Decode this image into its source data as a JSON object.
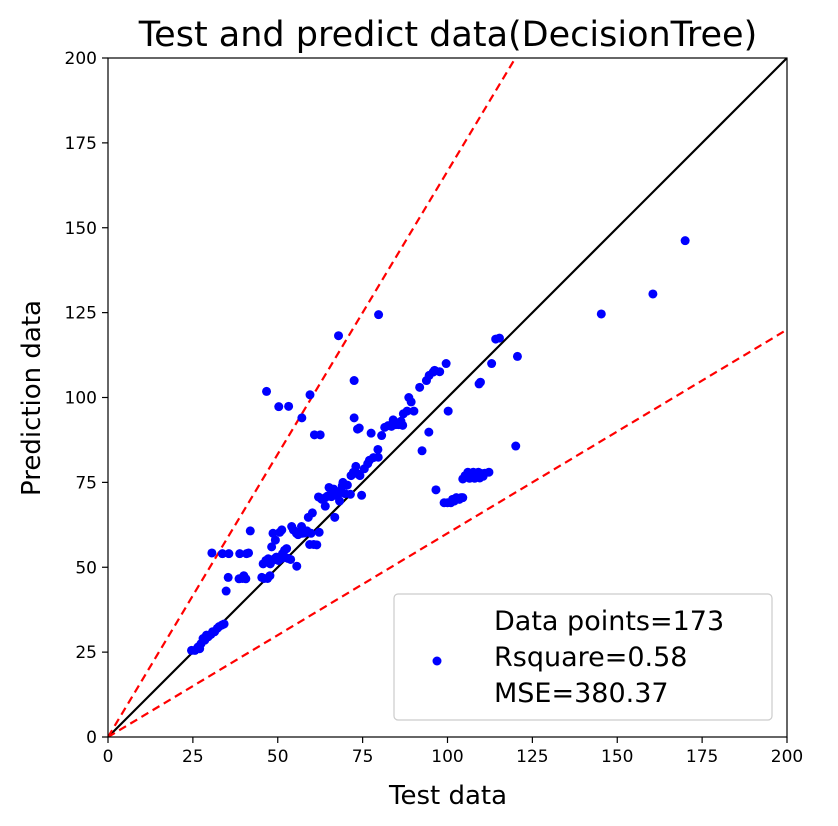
{
  "chart_data": {
    "type": "scatter",
    "title": "Test and predict data(DecisionTree)",
    "xlabel": "Test data",
    "ylabel": "Prediction data",
    "xlim": [
      0,
      200
    ],
    "ylim": [
      0,
      200
    ],
    "xticks": [
      0,
      25,
      50,
      75,
      100,
      125,
      150,
      175,
      200
    ],
    "yticks": [
      0,
      25,
      50,
      75,
      100,
      125,
      150,
      175,
      200
    ],
    "grid": false,
    "legend_position": "lower-right",
    "legend": {
      "lines": [
        "Data points=173",
        "Rsquare=0.58",
        "MSE=380.37"
      ]
    },
    "colors": {
      "points": "#0000ff",
      "identity_line": "#000000",
      "bound_lines": "#ff0000"
    },
    "reference_lines": [
      {
        "name": "identity",
        "style": "solid",
        "color": "#000000",
        "points": [
          [
            0,
            0
          ],
          [
            200,
            200
          ]
        ]
      },
      {
        "name": "upper-bound",
        "style": "dashed",
        "color": "#ff0000",
        "points": [
          [
            0,
            0
          ],
          [
            120,
            200
          ]
        ]
      },
      {
        "name": "lower-bound",
        "style": "dashed",
        "color": "#ff0000",
        "points": [
          [
            0,
            0
          ],
          [
            200,
            120
          ]
        ]
      }
    ],
    "series": [
      {
        "points": [
          [
            24.6,
            25.5
          ],
          [
            25.6,
            25.5
          ],
          [
            26.5,
            26.5
          ],
          [
            27.0,
            26.0
          ],
          [
            27.4,
            27.5
          ],
          [
            28.0,
            29.0
          ],
          [
            28.5,
            28.5
          ],
          [
            29.0,
            30.0
          ],
          [
            29.5,
            29.5
          ],
          [
            30.3,
            30.2
          ],
          [
            30.8,
            31.0
          ],
          [
            31.4,
            31.0
          ],
          [
            32.2,
            32.0
          ],
          [
            32.7,
            32.5
          ],
          [
            33.6,
            33.0
          ],
          [
            34.2,
            33.3
          ],
          [
            30.6,
            54.2
          ],
          [
            33.7,
            54.0
          ],
          [
            35.6,
            54.0
          ],
          [
            34.8,
            43.0
          ],
          [
            35.4,
            47.0
          ],
          [
            38.6,
            46.6
          ],
          [
            39.6,
            46.7
          ],
          [
            40.6,
            46.6
          ],
          [
            38.8,
            54.0
          ],
          [
            40.8,
            54.0
          ],
          [
            41.4,
            54.2
          ],
          [
            41.9,
            60.7
          ],
          [
            45.3,
            47.0
          ],
          [
            46.0,
            46.7
          ],
          [
            47.0,
            46.7
          ],
          [
            45.7,
            51.0
          ],
          [
            46.5,
            52.0
          ],
          [
            47.2,
            52.5
          ],
          [
            47.8,
            51.0
          ],
          [
            48.5,
            52.0
          ],
          [
            49.0,
            52.5
          ],
          [
            49.6,
            53.0
          ],
          [
            50.2,
            52.0
          ],
          [
            51.1,
            52.6
          ],
          [
            48.2,
            56.0
          ],
          [
            48.6,
            60.0
          ],
          [
            50.6,
            60.3
          ],
          [
            51.2,
            61.0
          ],
          [
            51.4,
            54.0
          ],
          [
            52.0,
            55.0
          ],
          [
            53.0,
            52.6
          ],
          [
            53.8,
            52.3
          ],
          [
            54.1,
            62.0
          ],
          [
            54.6,
            61.0
          ],
          [
            55.5,
            60.0
          ],
          [
            56.0,
            59.6
          ],
          [
            56.6,
            60.5
          ],
          [
            57.2,
            60.0
          ],
          [
            58.0,
            60.1
          ],
          [
            58.6,
            60.7
          ],
          [
            55.6,
            50.3
          ],
          [
            59.4,
            56.7
          ],
          [
            59.8,
            60.0
          ],
          [
            60.6,
            56.7
          ],
          [
            61.5,
            56.6
          ],
          [
            59.0,
            64.7
          ],
          [
            62.2,
            60.3
          ],
          [
            62.0,
            70.7
          ],
          [
            63.0,
            70.0
          ],
          [
            64.0,
            70.5
          ],
          [
            64.7,
            71.0
          ],
          [
            65.1,
            73.5
          ],
          [
            66.2,
            72.0
          ],
          [
            66.8,
            64.7
          ],
          [
            67.6,
            71.0
          ],
          [
            68.5,
            72.5
          ],
          [
            69.0,
            74.0
          ],
          [
            69.2,
            75.0
          ],
          [
            69.8,
            71.7
          ],
          [
            71.4,
            71.5
          ],
          [
            71.6,
            77.0
          ],
          [
            72.3,
            78.0
          ],
          [
            73.0,
            79.7
          ],
          [
            73.6,
            77.5
          ],
          [
            74.2,
            77.0
          ],
          [
            74.7,
            71.2
          ],
          [
            75.5,
            79.0
          ],
          [
            76.5,
            80.5
          ],
          [
            77.0,
            81.5
          ],
          [
            78.2,
            82.3
          ],
          [
            79.6,
            82.4
          ],
          [
            79.5,
            84.7
          ],
          [
            80.6,
            88.8
          ],
          [
            81.5,
            91.2
          ],
          [
            82.5,
            91.7
          ],
          [
            83.5,
            91.5
          ],
          [
            84.7,
            92.0
          ],
          [
            85.6,
            92.0
          ],
          [
            86.3,
            93.0
          ],
          [
            86.8,
            91.8
          ],
          [
            88.1,
            96.0
          ],
          [
            88.6,
            100.0
          ],
          [
            89.3,
            98.7
          ],
          [
            90.1,
            96.0
          ],
          [
            91.8,
            103.0
          ],
          [
            92.5,
            84.3
          ],
          [
            93.8,
            105.0
          ],
          [
            94.6,
            106.5
          ],
          [
            95.8,
            107.5
          ],
          [
            96.2,
            108.0
          ],
          [
            94.5,
            89.8
          ],
          [
            96.6,
            72.8
          ],
          [
            99.0,
            69.0
          ],
          [
            99.6,
            110.0
          ],
          [
            100.0,
            69.0
          ],
          [
            100.2,
            96.0
          ],
          [
            101.0,
            69.0
          ],
          [
            101.5,
            70.0
          ],
          [
            102.0,
            69.5
          ],
          [
            102.6,
            70.5
          ],
          [
            103.5,
            70.0
          ],
          [
            104.0,
            70.5
          ],
          [
            104.5,
            70.5
          ],
          [
            104.5,
            76.0
          ],
          [
            105.2,
            77.0
          ],
          [
            105.7,
            76.5
          ],
          [
            106.0,
            78.0
          ],
          [
            106.5,
            76.2
          ],
          [
            107.0,
            77.0
          ],
          [
            107.6,
            78.0
          ],
          [
            108.0,
            76.2
          ],
          [
            108.5,
            77.5
          ],
          [
            109.1,
            78.0
          ],
          [
            109.5,
            76.3
          ],
          [
            110.0,
            77.6
          ],
          [
            110.5,
            76.8
          ],
          [
            111.0,
            77.7
          ],
          [
            112.2,
            78.0
          ],
          [
            109.3,
            104.0
          ],
          [
            109.7,
            104.5
          ],
          [
            113.0,
            110.0
          ],
          [
            114.2,
            117.2
          ],
          [
            115.3,
            117.5
          ],
          [
            120.1,
            85.7
          ],
          [
            120.6,
            112.1
          ],
          [
            46.7,
            101.8
          ],
          [
            50.3,
            97.3
          ],
          [
            53.2,
            97.4
          ],
          [
            57.1,
            94.0
          ],
          [
            59.5,
            100.8
          ],
          [
            60.8,
            89.0
          ],
          [
            62.5,
            89.0
          ],
          [
            67.9,
            118.2
          ],
          [
            72.5,
            105.0
          ],
          [
            72.5,
            94.0
          ],
          [
            73.5,
            90.7
          ],
          [
            74.0,
            91.0
          ],
          [
            77.5,
            89.5
          ],
          [
            79.7,
            124.4
          ],
          [
            145.3,
            124.6
          ],
          [
            160.5,
            130.5
          ],
          [
            170.0,
            146.2
          ],
          [
            40.0,
            47.5
          ],
          [
            47.7,
            47.5
          ],
          [
            49.3,
            58.0
          ],
          [
            52.6,
            55.5
          ],
          [
            57.0,
            62.0
          ],
          [
            60.2,
            66.0
          ],
          [
            64.0,
            68.0
          ],
          [
            65.8,
            70.8
          ],
          [
            68.2,
            69.5
          ],
          [
            70.5,
            74.2
          ],
          [
            84.0,
            93.4
          ],
          [
            87.0,
            95.2
          ],
          [
            97.7,
            107.6
          ],
          [
            62.8,
            70.2
          ],
          [
            66.5,
            73.0
          ]
        ]
      }
    ]
  }
}
